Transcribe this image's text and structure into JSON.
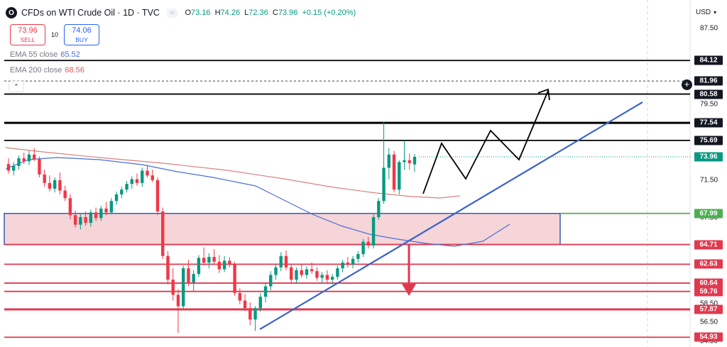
{
  "header": {
    "logo": "O",
    "symbol": "CFDs on WTI Crude Oil · 1D · TVC",
    "pill": "≈",
    "ohlc": [
      {
        "k": "O",
        "v": "73.16"
      },
      {
        "k": "H",
        "v": "74.26"
      },
      {
        "k": "L",
        "v": "72.36"
      },
      {
        "k": "C",
        "v": "73.96"
      }
    ],
    "change": "+0.15 (+0.20%)"
  },
  "trade": {
    "sell_price": "73.96",
    "sell_label": "SELL",
    "spread": "10",
    "buy_price": "74.06",
    "buy_label": "BUY"
  },
  "indicators": [
    {
      "name": "EMA 55 close",
      "value": "65.52",
      "color": "#4a6fd6"
    },
    {
      "name": "EMA 200 close",
      "value": "68.56",
      "color": "#e05a5a"
    }
  ],
  "currency": "USD",
  "collapse_icon": "chevron-up-icon",
  "colors": {
    "up": "#089981",
    "down": "#f23645",
    "ema55": "#4a6fd6",
    "ema200": "#d98080",
    "trendline": "#3b63c9",
    "zone_fill": "#f5d5d8",
    "zone_border": "#3b5bb5",
    "green_level": "#4caf50",
    "red_level": "#e0394f",
    "black_level": "#000000"
  },
  "chart_data": {
    "type": "candlestick",
    "ylim": [
      53.9,
      90.5
    ],
    "y_ticks": [
      "87.50",
      "79.50",
      "71.50",
      "67.50",
      "58.50",
      "56.50",
      "54.50"
    ],
    "current_price": "73.96",
    "levels": [
      {
        "value": 84.12,
        "label": "84.12",
        "color": "#000000"
      },
      {
        "value": 81.96,
        "label": "81.96",
        "color": "#000000",
        "dashed": true
      },
      {
        "value": 80.58,
        "label": "80.58",
        "color": "#000000"
      },
      {
        "value": 77.54,
        "label": "77.54",
        "color": "#000000",
        "bold": true
      },
      {
        "value": 75.69,
        "label": "75.69",
        "color": "#000000"
      },
      {
        "value": 67.99,
        "label": "67.99",
        "color": "#4caf50"
      },
      {
        "value": 64.71,
        "label": "64.71",
        "color": "#e0394f"
      },
      {
        "value": 62.63,
        "label": "62.63",
        "color": "#e0394f"
      },
      {
        "value": 60.64,
        "label": "60.64",
        "color": "#e0394f"
      },
      {
        "value": 59.76,
        "label": "59.76",
        "color": "#e0394f"
      },
      {
        "value": 57.87,
        "label": "57.87",
        "color": "#e0394f",
        "bold": true
      },
      {
        "value": 54.93,
        "label": "54.93",
        "color": "#e0394f"
      }
    ],
    "candles": [
      [
        73.2,
        73.8,
        72.2,
        72.5
      ],
      [
        72.5,
        73.4,
        72.0,
        73.0
      ],
      [
        73.0,
        74.1,
        72.6,
        73.8
      ],
      [
        73.8,
        74.4,
        73.2,
        73.5
      ],
      [
        73.5,
        74.6,
        73.1,
        74.2
      ],
      [
        74.2,
        74.9,
        73.5,
        73.7
      ],
      [
        73.7,
        74.0,
        71.8,
        72.1
      ],
      [
        72.1,
        72.6,
        70.8,
        71.2
      ],
      [
        71.2,
        72.0,
        70.3,
        70.6
      ],
      [
        70.6,
        71.8,
        70.2,
        71.5
      ],
      [
        71.5,
        72.3,
        70.0,
        70.4
      ],
      [
        70.4,
        70.9,
        69.3,
        69.6
      ],
      [
        69.6,
        70.0,
        67.4,
        67.8
      ],
      [
        67.8,
        68.3,
        66.5,
        66.8
      ],
      [
        66.8,
        67.9,
        66.3,
        67.6
      ],
      [
        67.6,
        68.2,
        66.7,
        67.0
      ],
      [
        67.0,
        68.4,
        66.6,
        68.1
      ],
      [
        68.1,
        68.6,
        67.2,
        67.5
      ],
      [
        67.5,
        68.8,
        67.2,
        68.5
      ],
      [
        68.5,
        69.2,
        67.8,
        68.1
      ],
      [
        68.1,
        69.6,
        67.9,
        69.3
      ],
      [
        69.3,
        70.3,
        68.9,
        70.0
      ],
      [
        70.0,
        70.8,
        69.6,
        70.5
      ],
      [
        70.5,
        71.4,
        70.2,
        71.1
      ],
      [
        71.1,
        71.9,
        70.6,
        71.6
      ],
      [
        71.6,
        72.2,
        70.9,
        71.2
      ],
      [
        71.2,
        72.8,
        70.8,
        72.5
      ],
      [
        72.5,
        73.1,
        71.8,
        72.0
      ],
      [
        72.0,
        72.6,
        71.3,
        71.5
      ],
      [
        71.5,
        71.8,
        67.8,
        68.2
      ],
      [
        68.2,
        68.6,
        63.2,
        63.5
      ],
      [
        63.5,
        64.0,
        60.5,
        61.0
      ],
      [
        61.0,
        62.2,
        58.8,
        59.4
      ],
      [
        59.4,
        60.0,
        55.4,
        58.2
      ],
      [
        58.2,
        62.5,
        58.0,
        62.2
      ],
      [
        62.2,
        63.1,
        60.3,
        60.7
      ],
      [
        60.7,
        62.0,
        59.8,
        61.6
      ],
      [
        61.6,
        63.6,
        61.3,
        63.3
      ],
      [
        63.3,
        64.4,
        62.5,
        62.8
      ],
      [
        62.8,
        63.8,
        62.2,
        63.4
      ],
      [
        63.4,
        64.2,
        62.6,
        62.9
      ],
      [
        62.9,
        63.6,
        61.7,
        62.1
      ],
      [
        62.1,
        63.5,
        61.8,
        63.0
      ],
      [
        63.0,
        63.4,
        62.3,
        62.6
      ],
      [
        62.6,
        62.9,
        59.3,
        59.6
      ],
      [
        59.6,
        60.1,
        58.4,
        58.8
      ],
      [
        58.8,
        59.5,
        57.7,
        58.0
      ],
      [
        58.0,
        58.6,
        56.2,
        56.8
      ],
      [
        56.8,
        58.2,
        55.6,
        58.0
      ],
      [
        58.0,
        59.6,
        57.6,
        59.2
      ],
      [
        59.2,
        60.6,
        58.6,
        60.3
      ],
      [
        60.3,
        61.9,
        59.9,
        61.5
      ],
      [
        61.5,
        62.7,
        61.0,
        62.3
      ],
      [
        62.3,
        63.9,
        61.9,
        63.5
      ],
      [
        63.5,
        64.1,
        62.0,
        62.3
      ],
      [
        62.3,
        62.6,
        60.7,
        61.0
      ],
      [
        61.0,
        62.3,
        60.6,
        62.0
      ],
      [
        62.0,
        62.6,
        61.2,
        61.5
      ],
      [
        61.5,
        62.4,
        61.1,
        62.1
      ],
      [
        62.1,
        62.8,
        61.6,
        61.9
      ],
      [
        61.9,
        62.3,
        60.9,
        61.2
      ],
      [
        61.2,
        61.8,
        60.6,
        61.5
      ],
      [
        61.5,
        62.0,
        60.7,
        61.0
      ],
      [
        61.0,
        61.6,
        60.5,
        61.3
      ],
      [
        61.3,
        62.5,
        61.0,
        62.2
      ],
      [
        62.2,
        63.1,
        61.8,
        62.8
      ],
      [
        62.8,
        63.4,
        62.3,
        62.6
      ],
      [
        62.6,
        63.5,
        62.2,
        63.2
      ],
      [
        63.2,
        64.0,
        62.8,
        63.7
      ],
      [
        63.7,
        65.3,
        63.4,
        65.0
      ],
      [
        65.0,
        65.5,
        64.3,
        64.6
      ],
      [
        64.6,
        67.9,
        64.3,
        67.6
      ],
      [
        67.6,
        69.6,
        67.3,
        69.3
      ],
      [
        69.3,
        77.6,
        69.0,
        72.8
      ],
      [
        72.8,
        74.9,
        71.6,
        74.2
      ],
      [
        74.2,
        74.6,
        70.2,
        70.5
      ],
      [
        70.5,
        73.6,
        70.0,
        73.4
      ],
      [
        73.4,
        75.7,
        72.6,
        73.6
      ],
      [
        73.6,
        74.3,
        72.6,
        73.3
      ],
      [
        73.16,
        74.26,
        72.36,
        73.96
      ]
    ]
  }
}
